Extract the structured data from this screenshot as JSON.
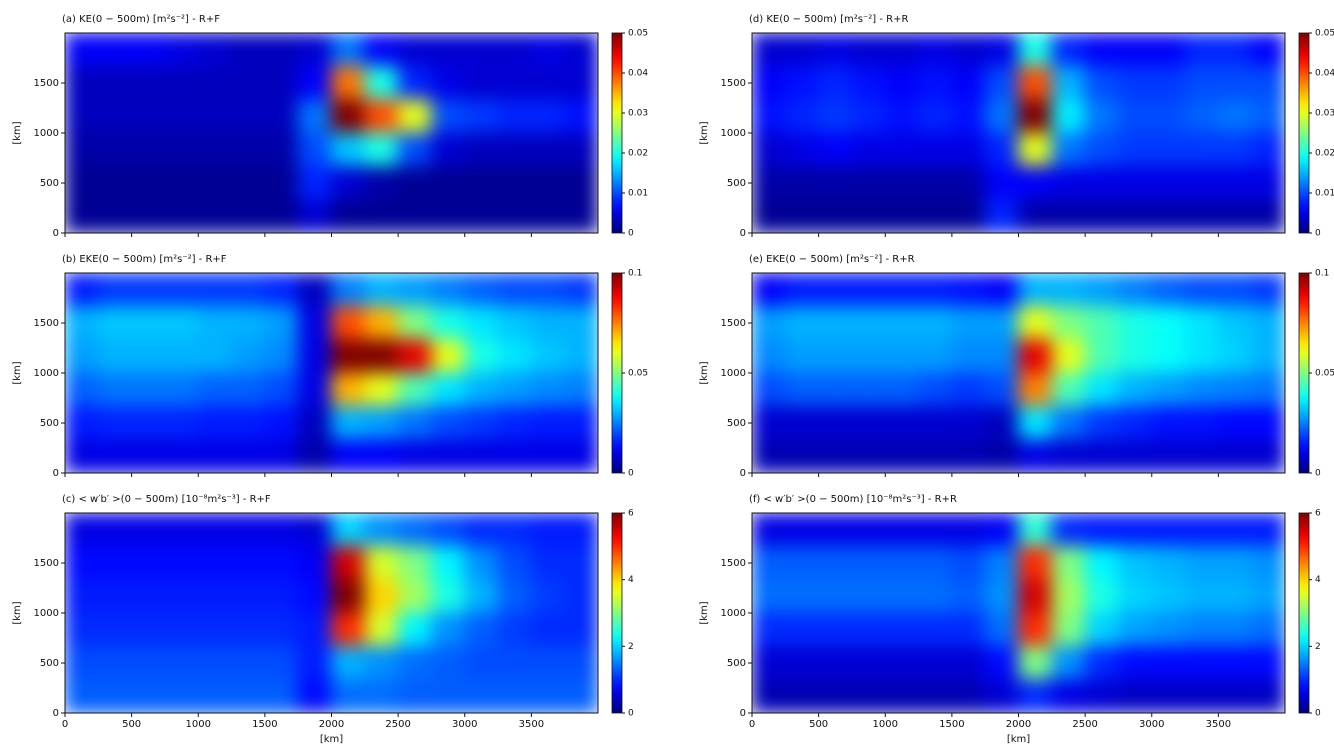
{
  "chart_data": [
    {
      "type": "heatmap",
      "title": "(a) KE(0 − 500m) [m²s⁻²] - R+F",
      "ylabel": "[km]",
      "colormap": "jet",
      "xlim": [
        0,
        4000
      ],
      "ylim": [
        0,
        2000
      ],
      "xticks": [
        0,
        500,
        1000,
        1500,
        2000,
        2500,
        3000,
        3500
      ],
      "yticks": [
        0,
        500,
        1000,
        1500
      ],
      "zlim": [
        0,
        0.05
      ],
      "zticks": [
        0,
        0.01,
        0.02,
        0.03,
        0.04,
        0.05
      ],
      "z": [
        [
          0.006,
          0.006,
          0.006,
          0.005,
          0.004,
          0.003,
          0.003,
          0.004,
          0.012,
          0.006,
          0.004,
          0.004,
          0.004,
          0.004,
          0.005,
          0.004
        ],
        [
          0.003,
          0.003,
          0.003,
          0.003,
          0.003,
          0.003,
          0.003,
          0.006,
          0.038,
          0.02,
          0.008,
          0.005,
          0.004,
          0.004,
          0.004,
          0.004
        ],
        [
          0.003,
          0.003,
          0.003,
          0.003,
          0.003,
          0.003,
          0.003,
          0.012,
          0.05,
          0.04,
          0.03,
          0.01,
          0.009,
          0.008,
          0.008,
          0.007
        ],
        [
          0.002,
          0.002,
          0.002,
          0.002,
          0.002,
          0.002,
          0.002,
          0.01,
          0.016,
          0.02,
          0.01,
          0.004,
          0.003,
          0.003,
          0.003,
          0.003
        ],
        [
          0.001,
          0.001,
          0.001,
          0.001,
          0.001,
          0.001,
          0.001,
          0.008,
          0.004,
          0.002,
          0.001,
          0.001,
          0.001,
          0.001,
          0.001,
          0.001
        ],
        [
          0.001,
          0.001,
          0.001,
          0.001,
          0.001,
          0.001,
          0.001,
          0.004,
          0.001,
          0.001,
          0.001,
          0.001,
          0.001,
          0.001,
          0.001,
          0.001
        ]
      ]
    },
    {
      "type": "heatmap",
      "title": "(b) EKE(0 − 500m) [m²s⁻²] - R+F",
      "ylabel": "[km]",
      "colormap": "jet",
      "xlim": [
        0,
        4000
      ],
      "ylim": [
        0,
        2000
      ],
      "xticks": [
        0,
        500,
        1000,
        1500,
        2000,
        2500,
        3000,
        3500
      ],
      "yticks": [
        0,
        500,
        1000,
        1500
      ],
      "zlim": [
        0,
        0.1
      ],
      "zticks": [
        0,
        0.05,
        0.1
      ],
      "z": [
        [
          0.015,
          0.018,
          0.018,
          0.018,
          0.018,
          0.018,
          0.016,
          0.006,
          0.025,
          0.03,
          0.028,
          0.025,
          0.022,
          0.02,
          0.02,
          0.018
        ],
        [
          0.03,
          0.032,
          0.032,
          0.032,
          0.03,
          0.03,
          0.028,
          0.01,
          0.08,
          0.07,
          0.05,
          0.04,
          0.035,
          0.032,
          0.03,
          0.03
        ],
        [
          0.028,
          0.03,
          0.03,
          0.03,
          0.03,
          0.028,
          0.026,
          0.01,
          0.1,
          0.1,
          0.09,
          0.06,
          0.04,
          0.035,
          0.032,
          0.03
        ],
        [
          0.022,
          0.024,
          0.024,
          0.024,
          0.022,
          0.022,
          0.02,
          0.01,
          0.07,
          0.06,
          0.045,
          0.035,
          0.03,
          0.028,
          0.026,
          0.025
        ],
        [
          0.015,
          0.016,
          0.016,
          0.016,
          0.015,
          0.015,
          0.014,
          0.006,
          0.03,
          0.028,
          0.024,
          0.02,
          0.018,
          0.016,
          0.015,
          0.015
        ],
        [
          0.01,
          0.01,
          0.01,
          0.01,
          0.01,
          0.01,
          0.01,
          0.004,
          0.012,
          0.012,
          0.01,
          0.01,
          0.01,
          0.01,
          0.01,
          0.01
        ]
      ]
    },
    {
      "type": "heatmap",
      "title": "(c) < w′b′ >(0 − 500m) [10⁻⁸m²s⁻³] - R+F",
      "ylabel": "[km]",
      "xlabel": "[km]",
      "colormap": "jet",
      "xlim": [
        0,
        4000
      ],
      "ylim": [
        0,
        2000
      ],
      "xticks": [
        0,
        500,
        1000,
        1500,
        2000,
        2500,
        3000,
        3500
      ],
      "yticks": [
        0,
        500,
        1000,
        1500
      ],
      "zlim": [
        0,
        6
      ],
      "zticks": [
        0,
        2,
        4,
        6
      ],
      "z": [
        [
          0.6,
          0.6,
          0.6,
          0.6,
          0.6,
          0.6,
          0.6,
          0.5,
          2,
          1.6,
          1.4,
          1.2,
          1,
          1,
          0.9,
          0.9
        ],
        [
          0.8,
          0.8,
          0.8,
          0.8,
          0.8,
          0.8,
          0.8,
          0.7,
          5.5,
          3.5,
          3,
          2.2,
          1.6,
          1.2,
          1,
          1
        ],
        [
          0.9,
          0.9,
          0.9,
          0.9,
          0.9,
          0.9,
          0.9,
          0.8,
          6,
          4,
          3.2,
          2.4,
          1.8,
          1.3,
          1.1,
          1
        ],
        [
          1,
          1,
          1,
          1,
          1,
          1,
          1,
          0.9,
          5,
          3.5,
          2.2,
          1.6,
          1.3,
          1.1,
          1,
          1
        ],
        [
          1.2,
          1.2,
          1.2,
          1.2,
          1.2,
          1.2,
          1.2,
          0.9,
          1.8,
          1.6,
          1.4,
          1.3,
          1.2,
          1.2,
          1.2,
          1.2
        ],
        [
          1.3,
          1.3,
          1.3,
          1.3,
          1.3,
          1.3,
          1.3,
          0.8,
          1.4,
          1.4,
          1.3,
          1.3,
          1.3,
          1.3,
          1.3,
          1.3
        ]
      ]
    },
    {
      "type": "heatmap",
      "title": "(d) KE(0 − 500m) [m²s⁻²] - R+R",
      "ylabel": "[km]",
      "colormap": "jet",
      "xlim": [
        0,
        4000
      ],
      "ylim": [
        0,
        2000
      ],
      "xticks": [
        0,
        500,
        1000,
        1500,
        2000,
        2500,
        3000,
        3500
      ],
      "yticks": [
        0,
        500,
        1000,
        1500
      ],
      "zlim": [
        0,
        0.05
      ],
      "zticks": [
        0,
        0.01,
        0.02,
        0.03,
        0.04,
        0.05
      ],
      "z": [
        [
          0.004,
          0.004,
          0.005,
          0.004,
          0.004,
          0.005,
          0.004,
          0.005,
          0.02,
          0.008,
          0.006,
          0.006,
          0.006,
          0.008,
          0.008,
          0.006
        ],
        [
          0.006,
          0.007,
          0.008,
          0.007,
          0.006,
          0.007,
          0.006,
          0.01,
          0.04,
          0.015,
          0.01,
          0.009,
          0.009,
          0.01,
          0.01,
          0.01
        ],
        [
          0.007,
          0.008,
          0.009,
          0.008,
          0.007,
          0.008,
          0.007,
          0.012,
          0.05,
          0.018,
          0.012,
          0.01,
          0.01,
          0.011,
          0.012,
          0.011
        ],
        [
          0.004,
          0.005,
          0.006,
          0.005,
          0.005,
          0.005,
          0.005,
          0.008,
          0.03,
          0.012,
          0.01,
          0.009,
          0.009,
          0.009,
          0.009,
          0.008
        ],
        [
          0.002,
          0.002,
          0.002,
          0.002,
          0.002,
          0.002,
          0.002,
          0.006,
          0.006,
          0.005,
          0.005,
          0.005,
          0.005,
          0.005,
          0.005,
          0.005
        ],
        [
          0.001,
          0.001,
          0.001,
          0.001,
          0.001,
          0.001,
          0.001,
          0.008,
          0.002,
          0.002,
          0.002,
          0.002,
          0.002,
          0.002,
          0.002,
          0.002
        ]
      ]
    },
    {
      "type": "heatmap",
      "title": "(e) EKE(0 − 500m) [m²s⁻²] - R+R",
      "ylabel": "[km]",
      "colormap": "jet",
      "xlim": [
        0,
        4000
      ],
      "ylim": [
        0,
        2000
      ],
      "xticks": [
        0,
        500,
        1000,
        1500,
        2000,
        2500,
        3000,
        3500
      ],
      "yticks": [
        0,
        500,
        1000,
        1500
      ],
      "zlim": [
        0,
        0.1
      ],
      "zticks": [
        0,
        0.05,
        0.1
      ],
      "z": [
        [
          0.012,
          0.015,
          0.015,
          0.015,
          0.015,
          0.015,
          0.014,
          0.012,
          0.03,
          0.03,
          0.028,
          0.025,
          0.022,
          0.02,
          0.02,
          0.018
        ],
        [
          0.028,
          0.03,
          0.03,
          0.03,
          0.03,
          0.03,
          0.028,
          0.028,
          0.06,
          0.05,
          0.045,
          0.04,
          0.038,
          0.035,
          0.032,
          0.03
        ],
        [
          0.026,
          0.028,
          0.028,
          0.028,
          0.028,
          0.028,
          0.026,
          0.026,
          0.09,
          0.06,
          0.045,
          0.04,
          0.038,
          0.035,
          0.033,
          0.03
        ],
        [
          0.02,
          0.022,
          0.022,
          0.022,
          0.022,
          0.02,
          0.018,
          0.02,
          0.075,
          0.045,
          0.035,
          0.03,
          0.028,
          0.026,
          0.025,
          0.024
        ],
        [
          0.008,
          0.008,
          0.008,
          0.008,
          0.008,
          0.008,
          0.008,
          0.006,
          0.035,
          0.024,
          0.018,
          0.016,
          0.014,
          0.014,
          0.013,
          0.013
        ],
        [
          0.005,
          0.005,
          0.005,
          0.005,
          0.005,
          0.005,
          0.005,
          0.004,
          0.01,
          0.008,
          0.008,
          0.008,
          0.008,
          0.008,
          0.008,
          0.008
        ]
      ]
    },
    {
      "type": "heatmap",
      "title": "(f) < w′b′ >(0 − 500m) [10⁻⁸m²s⁻³] - R+R",
      "ylabel": "[km]",
      "xlabel": "[km]",
      "colormap": "jet",
      "xlim": [
        0,
        4000
      ],
      "ylim": [
        0,
        2000
      ],
      "xticks": [
        0,
        500,
        1000,
        1500,
        2000,
        2500,
        3000,
        3500
      ],
      "yticks": [
        0,
        500,
        1000,
        1500
      ],
      "zlim": [
        0,
        6
      ],
      "zticks": [
        0,
        2,
        4,
        6
      ],
      "z": [
        [
          0.6,
          0.6,
          0.6,
          0.6,
          0.6,
          0.6,
          0.6,
          0.7,
          2.5,
          1,
          0.9,
          0.9,
          0.9,
          0.9,
          0.9,
          0.9
        ],
        [
          1.3,
          1.3,
          1.3,
          1.3,
          1.3,
          1.3,
          1.2,
          1.5,
          5,
          3,
          2.2,
          1.9,
          1.8,
          1.7,
          1.7,
          1.6
        ],
        [
          1.4,
          1.4,
          1.4,
          1.4,
          1.4,
          1.4,
          1.3,
          1.6,
          5.5,
          3.2,
          2.4,
          2,
          1.9,
          1.8,
          1.8,
          1.7
        ],
        [
          1,
          1,
          1,
          1,
          1,
          1,
          1,
          1.4,
          5,
          3,
          2,
          1.7,
          1.6,
          1.5,
          1.5,
          1.4
        ],
        [
          0.5,
          0.5,
          0.5,
          0.5,
          0.5,
          0.5,
          0.5,
          0.8,
          3,
          1.6,
          1,
          0.8,
          0.8,
          0.8,
          0.8,
          0.8
        ],
        [
          0.3,
          0.3,
          0.3,
          0.3,
          0.3,
          0.3,
          0.3,
          0.5,
          1,
          0.6,
          0.5,
          0.4,
          0.4,
          0.4,
          0.4,
          0.4
        ]
      ]
    }
  ]
}
